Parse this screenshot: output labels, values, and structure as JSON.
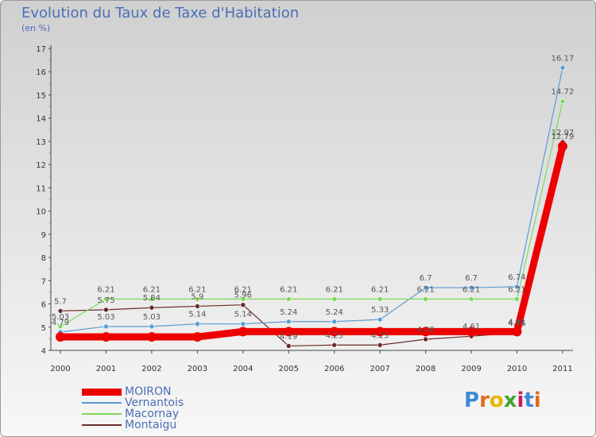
{
  "chart_data": {
    "type": "line",
    "title": "Evolution du Taux de Taxe d'Habitation",
    "subtitle": "(en %)",
    "xlabel": "",
    "ylabel": "",
    "ylim": [
      4,
      17
    ],
    "yticks": [
      "4",
      "5",
      "6",
      "7",
      "8",
      "9",
      "10",
      "11",
      "12",
      "13",
      "14",
      "15",
      "16",
      "17"
    ],
    "categories": [
      "2000",
      "2001",
      "2002",
      "2003",
      "2004",
      "2005",
      "2006",
      "2007",
      "2008",
      "2009",
      "2010",
      "2011"
    ],
    "series": [
      {
        "name": "MOIRON",
        "color": "#ee0000",
        "values": [
          4.58,
          4.58,
          4.58,
          4.58,
          4.81,
          4.81,
          4.81,
          4.81,
          4.81,
          4.81,
          4.81,
          12.79
        ],
        "labels": [
          "",
          "",
          "",
          "",
          "",
          "",
          "",
          "",
          "",
          "",
          "4.81",
          "12.79"
        ]
      },
      {
        "name": "Vernantois",
        "color": "#5a9bd5",
        "values": [
          4.79,
          5.03,
          5.03,
          5.14,
          5.14,
          5.24,
          5.24,
          5.33,
          6.7,
          6.7,
          6.74,
          16.17
        ],
        "labels": [
          "4.79",
          "5.03",
          "5.03",
          "5.14",
          "5.14",
          "5.24",
          "5.24",
          "5.33",
          "6.7",
          "6.7",
          "6.74",
          "16.17"
        ]
      },
      {
        "name": "Macornay",
        "color": "#7ed957",
        "values": [
          5.03,
          6.21,
          6.21,
          6.21,
          6.21,
          6.21,
          6.21,
          6.21,
          6.21,
          6.21,
          6.21,
          14.72
        ],
        "labels": [
          "5.03",
          "6.21",
          "6.21",
          "6.21",
          "6.21",
          "6.21",
          "6.21",
          "6.21",
          "6.21",
          "6.21",
          "6.21",
          "14.72"
        ]
      },
      {
        "name": "Montaigu",
        "color": "#6b2a2a",
        "values": [
          5.7,
          5.75,
          5.84,
          5.9,
          5.96,
          4.19,
          4.23,
          4.23,
          4.48,
          4.61,
          4.76,
          12.97
        ],
        "labels": [
          "5.7",
          "5.75",
          "5.84",
          "5.9",
          "5.96",
          "4.19",
          "4.23",
          "4.23",
          "4.48",
          "4.61",
          "4.76",
          "12.97"
        ]
      }
    ],
    "legend_position": "bottom-left",
    "grid": false
  },
  "logo": {
    "letters": [
      "P",
      "r",
      "o",
      "x",
      "i",
      "t",
      "i"
    ],
    "colors": [
      "#3d8bd8",
      "#e06b1f",
      "#e8b400",
      "#3fa535",
      "#c21e5b",
      "#3d8bd8",
      "#e06b1f"
    ]
  }
}
